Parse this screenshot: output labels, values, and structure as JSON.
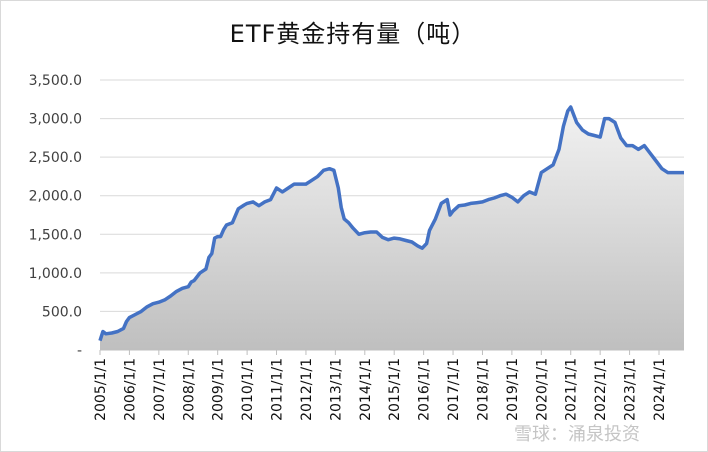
{
  "chart_data": {
    "type": "area",
    "title": "ETF黄金持有量（吨）",
    "ylim": [
      0,
      3500
    ],
    "yticks": [
      "-",
      "500.0",
      "1,000.0",
      "1,500.0",
      "2,000.0",
      "2,500.0",
      "3,000.0",
      "3,500.0"
    ],
    "ytick_values": [
      0,
      500,
      1000,
      1500,
      2000,
      2500,
      3000,
      3500
    ],
    "xticks": [
      "2005/1/1",
      "2006/1/1",
      "2007/1/1",
      "2008/1/1",
      "2009/1/1",
      "2010/1/1",
      "2011/1/1",
      "2012/1/1",
      "2013/1/1",
      "2014/1/1",
      "2015/1/1",
      "2016/1/1",
      "2017/1/1",
      "2018/1/1",
      "2019/1/1",
      "2020/1/1",
      "2021/1/1",
      "2022/1/1",
      "2023/1/1",
      "2024/1/1"
    ],
    "xlim": [
      2005.0,
      2024.85
    ],
    "grid": true,
    "series": [
      {
        "x": [
          2005.0,
          2005.1,
          2005.2,
          2005.4,
          2005.6,
          2005.8,
          2005.9,
          2006.0,
          2006.2,
          2006.4,
          2006.6,
          2006.8,
          2007.0,
          2007.2,
          2007.4,
          2007.6,
          2007.8,
          2008.0,
          2008.1,
          2008.2,
          2008.4,
          2008.6,
          2008.7,
          2008.8,
          2008.9,
          2009.0,
          2009.1,
          2009.2,
          2009.3,
          2009.5,
          2009.7,
          2009.9,
          2010.0,
          2010.2,
          2010.4,
          2010.6,
          2010.8,
          2011.0,
          2011.2,
          2011.4,
          2011.6,
          2011.8,
          2012.0,
          2012.2,
          2012.4,
          2012.6,
          2012.8,
          2012.95,
          2013.1,
          2013.2,
          2013.3,
          2013.45,
          2013.6,
          2013.8,
          2014.0,
          2014.2,
          2014.4,
          2014.6,
          2014.8,
          2015.0,
          2015.2,
          2015.4,
          2015.6,
          2015.8,
          2015.95,
          2016.1,
          2016.2,
          2016.4,
          2016.6,
          2016.8,
          2016.9,
          2017.0,
          2017.2,
          2017.4,
          2017.6,
          2017.8,
          2018.0,
          2018.2,
          2018.4,
          2018.6,
          2018.8,
          2019.0,
          2019.2,
          2019.4,
          2019.6,
          2019.8,
          2020.0,
          2020.2,
          2020.4,
          2020.6,
          2020.75,
          2020.9,
          2021.0,
          2021.2,
          2021.4,
          2021.6,
          2021.8,
          2022.0,
          2022.15,
          2022.3,
          2022.5,
          2022.7,
          2022.9,
          2023.1,
          2023.3,
          2023.5,
          2023.7,
          2023.9,
          2024.1,
          2024.3,
          2024.5,
          2024.7,
          2024.85
        ],
        "values": [
          120,
          240,
          210,
          220,
          240,
          280,
          370,
          420,
          460,
          500,
          560,
          600,
          620,
          650,
          700,
          760,
          800,
          820,
          880,
          900,
          1000,
          1050,
          1200,
          1250,
          1450,
          1470,
          1470,
          1560,
          1620,
          1650,
          1830,
          1880,
          1900,
          1920,
          1870,
          1920,
          1950,
          2100,
          2050,
          2100,
          2150,
          2150,
          2150,
          2200,
          2250,
          2330,
          2350,
          2330,
          2100,
          1850,
          1700,
          1650,
          1580,
          1500,
          1520,
          1530,
          1530,
          1460,
          1430,
          1450,
          1440,
          1420,
          1400,
          1350,
          1320,
          1380,
          1550,
          1700,
          1900,
          1950,
          1750,
          1800,
          1870,
          1880,
          1900,
          1910,
          1920,
          1950,
          1970,
          2000,
          2020,
          1980,
          1920,
          2000,
          2050,
          2020,
          2300,
          2350,
          2400,
          2600,
          2900,
          3100,
          3150,
          2950,
          2850,
          2800,
          2780,
          2760,
          3000,
          3000,
          2950,
          2750,
          2650,
          2650,
          2600,
          2650,
          2550,
          2450,
          2350,
          2300,
          2300,
          2300,
          2300
        ]
      }
    ]
  },
  "watermark": "雪球：涌泉投资"
}
